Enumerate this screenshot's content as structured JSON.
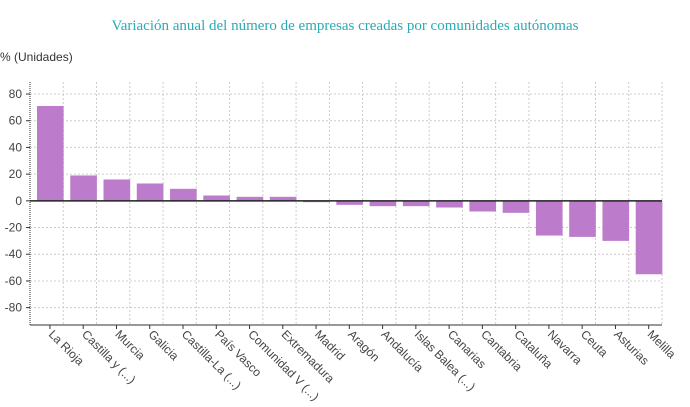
{
  "chart_data": {
    "type": "bar",
    "title": "Variación anual del número de empresas creadas por comunidades autónomas",
    "ylabel": "% (Unidades)",
    "xlabel": "",
    "categories": [
      "La Rioja",
      "Castilla y (...)",
      "Murcia",
      "Galicia",
      "Castilla-La (...)",
      "País Vasco",
      "Comunidad V (...)",
      "Extremadura",
      "Madrid",
      "Aragón",
      "Andalucía",
      "Islas Balea (...)",
      "Canarias",
      "Cantabria",
      "Cataluña",
      "Navarra",
      "Ceuta",
      "Asturias",
      "Melilla"
    ],
    "values": [
      71,
      19,
      16,
      13,
      9,
      4,
      3,
      3,
      -1,
      -3,
      -4,
      -4,
      -5,
      -8,
      -9,
      -26,
      -27,
      -30,
      -55
    ],
    "yticks": [
      -80,
      -60,
      -40,
      -20,
      0,
      20,
      40,
      60,
      80
    ],
    "ylim": [
      -93,
      89
    ],
    "grid": true,
    "bar_color": "#bd7bcb"
  }
}
